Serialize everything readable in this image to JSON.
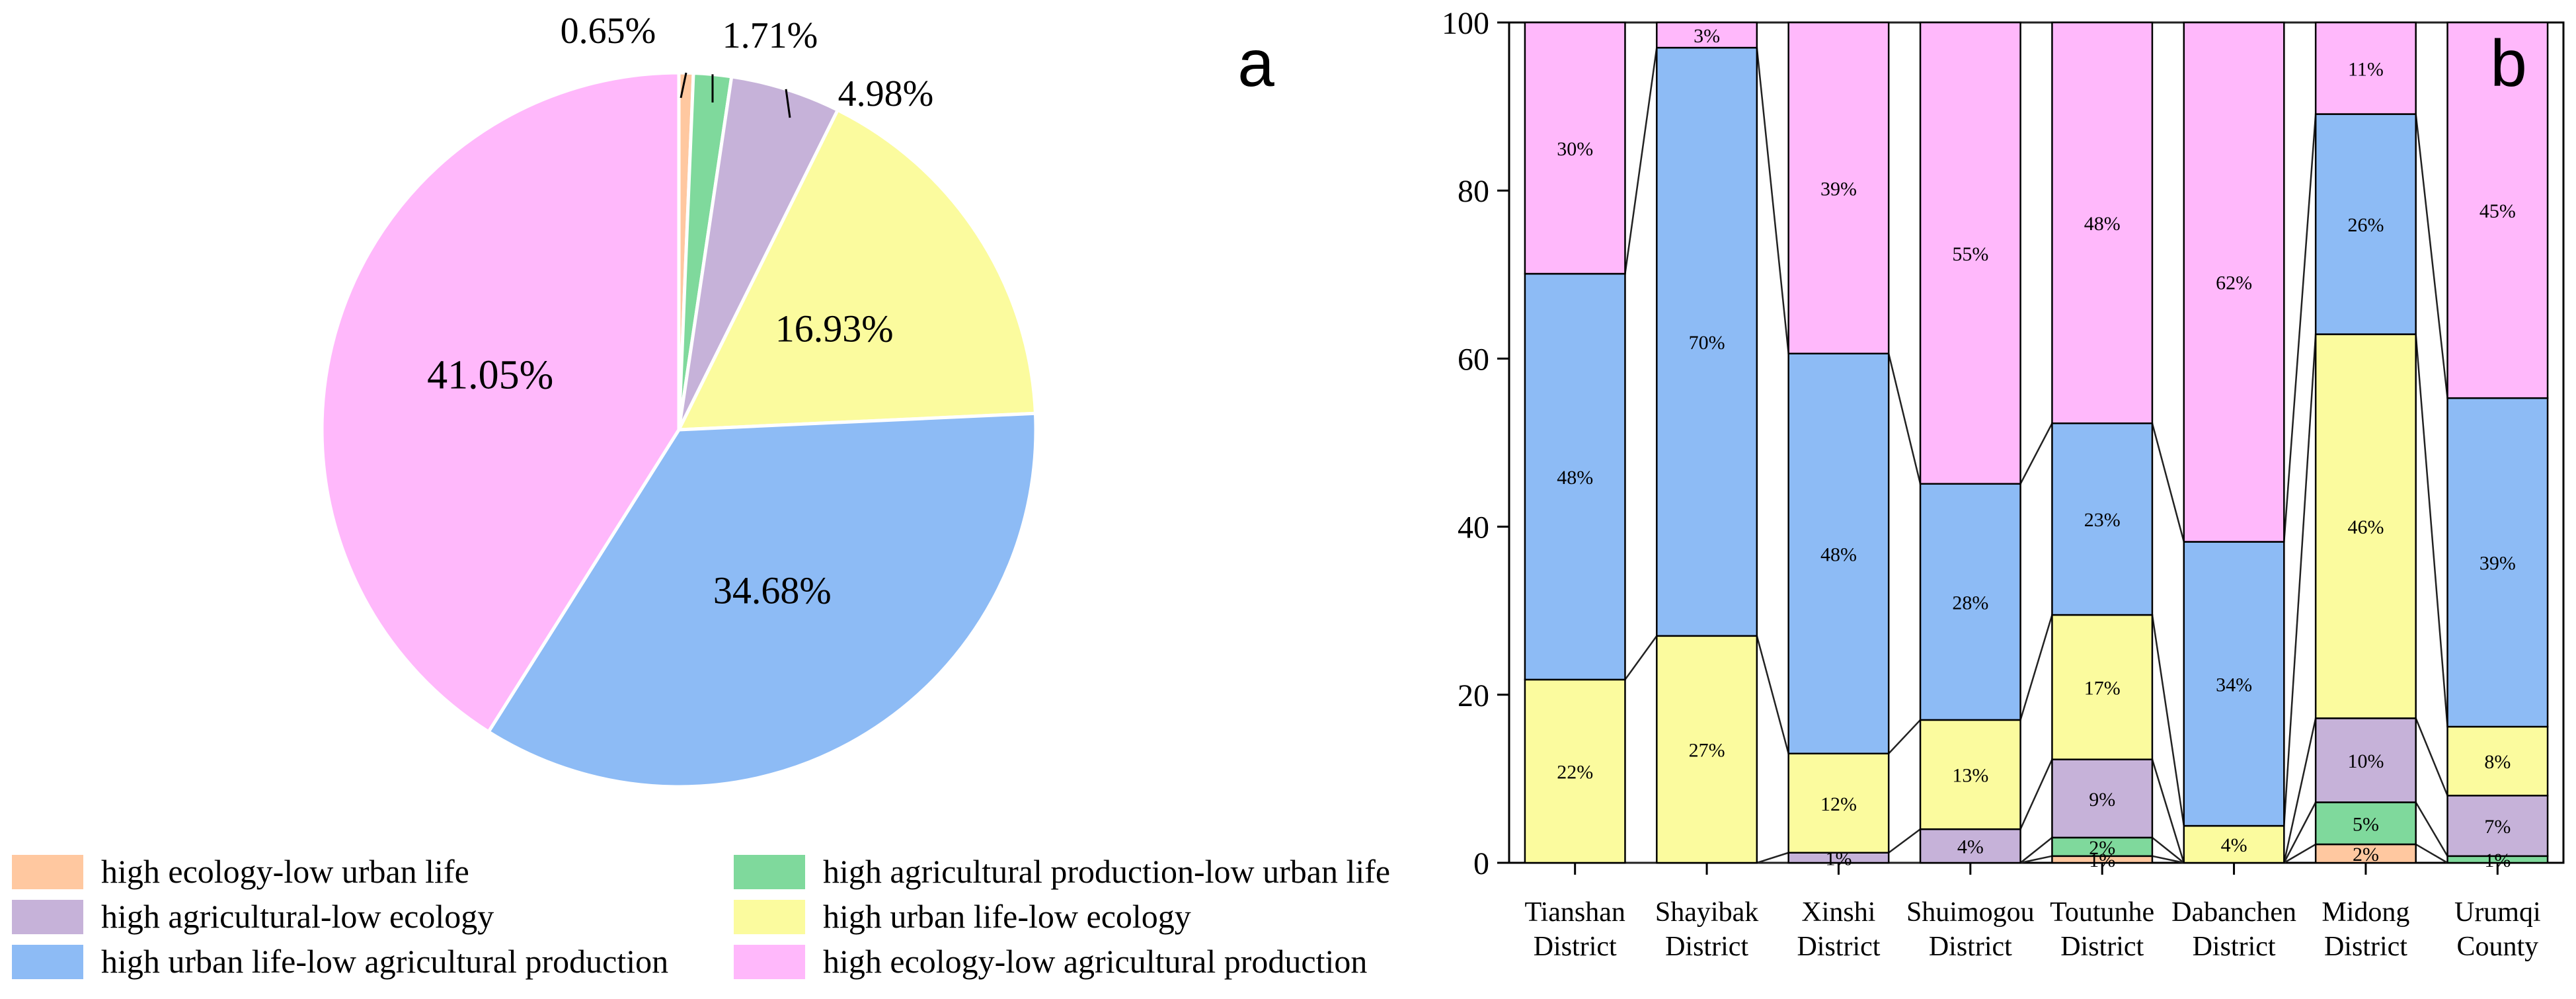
{
  "chart_data": [
    {
      "type": "pie",
      "panel_label": "a",
      "slices": [
        {
          "name": "high ecology-low urban life",
          "value": 0.65,
          "label": "0.65%",
          "color": "#ffc8a0"
        },
        {
          "name": "high agricultural production-low urban life",
          "value": 1.71,
          "label": "1.71%",
          "color": "#7fd99c"
        },
        {
          "name": "high agricultural-low ecology",
          "value": 4.98,
          "label": "4.98%",
          "color": "#c6b2d9"
        },
        {
          "name": "high urban life-low ecology",
          "value": 16.93,
          "label": "16.93%",
          "color": "#fbfb9e"
        },
        {
          "name": "high urban life-low agricultural production",
          "value": 34.68,
          "label": "34.68%",
          "color": "#8dbbf5"
        },
        {
          "name": "high ecology-low agricultural production",
          "value": 41.05,
          "label": "41.05%",
          "color": "#ffb8fb"
        }
      ],
      "legend": [
        {
          "label": "high ecology-low urban life",
          "color": "#ffc8a0"
        },
        {
          "label": "high agricultural production-low urban life",
          "color": "#7fd99c"
        },
        {
          "label": "high agricultural-low ecology",
          "color": "#c6b2d9"
        },
        {
          "label": "high urban life-low ecology",
          "color": "#fbfb9e"
        },
        {
          "label": "high urban life-low agricultural production",
          "color": "#8dbbf5"
        },
        {
          "label": "high ecology-low agricultural production",
          "color": "#ffb8fb"
        }
      ],
      "legend_position": "bottom"
    },
    {
      "type": "stacked_bar",
      "panel_label": "b",
      "ylim": [
        0,
        100
      ],
      "yticks": [
        "0",
        "20",
        "40",
        "60",
        "80",
        "100"
      ],
      "categories": [
        {
          "line1": "Tianshan",
          "line2": "District"
        },
        {
          "line1": "Shayibak",
          "line2": "District"
        },
        {
          "line1": "Xinshi",
          "line2": "District"
        },
        {
          "line1": "Shuimogou",
          "line2": "District"
        },
        {
          "line1": "Toutunhe",
          "line2": "District"
        },
        {
          "line1": "Dabanchen",
          "line2": "District"
        },
        {
          "line1": "Midong",
          "line2": "District"
        },
        {
          "line1": "Urumqi",
          "line2": "County"
        }
      ],
      "series": [
        {
          "name": "high ecology-low urban life",
          "color": "#ffc8a0",
          "values": [
            0,
            0,
            0,
            0,
            0.8,
            0,
            2.2,
            0
          ],
          "labels": [
            "",
            "",
            "",
            "",
            "1%",
            "",
            "2%",
            ""
          ]
        },
        {
          "name": "high agricultural production-low urban life",
          "color": "#7fd99c",
          "values": [
            0,
            0,
            0,
            0,
            2.2,
            0,
            5.0,
            0.8
          ],
          "labels": [
            "",
            "",
            "",
            "",
            "2%",
            "",
            "5%",
            "1%"
          ]
        },
        {
          "name": "high agricultural-low ecology",
          "color": "#c6b2d9",
          "values": [
            0,
            0,
            1.2,
            4.0,
            9.3,
            0,
            10.0,
            7.2
          ],
          "labels": [
            "",
            "",
            "1%",
            "4%",
            "9%",
            "",
            "10%",
            "7%"
          ]
        },
        {
          "name": "high urban life-low ecology",
          "color": "#fbfb9e",
          "values": [
            21.8,
            27.0,
            11.8,
            13.0,
            17.2,
            4.4,
            45.7,
            8.2
          ],
          "labels": [
            "22%",
            "27%",
            "12%",
            "13%",
            "17%",
            "4%",
            "46%",
            "8%"
          ]
        },
        {
          "name": "high urban life-low agricultural production",
          "color": "#8dbbf5",
          "values": [
            48.3,
            70.0,
            47.6,
            28.1,
            22.8,
            33.8,
            26.2,
            39.1
          ],
          "labels": [
            "48%",
            "70%",
            "48%",
            "28%",
            "23%",
            "34%",
            "26%",
            "39%"
          ]
        },
        {
          "name": "high ecology-low agricultural production",
          "color": "#ffb8fb",
          "values": [
            29.9,
            3.0,
            39.4,
            54.9,
            47.7,
            61.8,
            10.9,
            44.7
          ],
          "labels": [
            "30%",
            "3%",
            "39%",
            "55%",
            "48%",
            "62%",
            "11%",
            "45%"
          ]
        }
      ],
      "connector_lines": true
    }
  ]
}
